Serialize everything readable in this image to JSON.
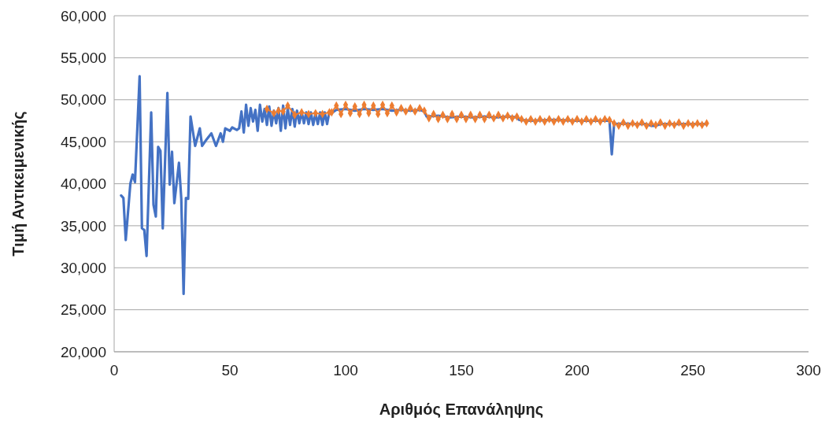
{
  "chart_data": {
    "type": "line",
    "xlabel": "Αριθμός Επανάληψης",
    "ylabel": "Τιμή Αντικειμενικής",
    "xlim": [
      0,
      300
    ],
    "xticks": [
      0,
      50,
      100,
      150,
      200,
      250,
      300
    ],
    "ylim": [
      20000,
      60000
    ],
    "yticks": [
      {
        "value": 20000,
        "label": "20,000"
      },
      {
        "value": 25000,
        "label": "25,000"
      },
      {
        "value": 30000,
        "label": "30,000"
      },
      {
        "value": 35000,
        "label": "35,000"
      },
      {
        "value": 40000,
        "label": "40,000"
      },
      {
        "value": 45000,
        "label": "45,000"
      },
      {
        "value": 50000,
        "label": "50,000"
      },
      {
        "value": 55000,
        "label": "55,000"
      },
      {
        "value": 60000,
        "label": "60,000"
      }
    ],
    "grid": "y",
    "series": [
      {
        "color": "#4472c4",
        "marker": "none",
        "x": [
          3,
          4,
          5,
          7,
          8,
          9,
          11,
          12,
          13,
          14,
          16,
          17,
          18,
          19,
          20,
          21,
          23,
          24,
          25,
          26,
          28,
          29,
          30,
          31,
          32,
          33,
          35,
          37,
          38,
          40,
          42,
          44,
          46,
          47,
          48,
          50,
          51,
          53,
          54,
          55,
          56,
          57,
          58,
          59,
          60,
          61,
          62,
          63,
          64,
          65,
          66,
          67,
          68,
          69,
          70,
          71,
          72,
          73,
          74,
          75,
          76,
          77,
          78,
          79,
          80,
          81,
          82,
          83,
          84,
          85,
          86,
          87,
          88,
          89,
          90,
          91,
          92,
          93,
          94,
          96,
          100,
          104,
          108,
          112,
          116,
          120,
          124,
          128,
          132,
          134,
          135,
          140,
          145,
          150,
          155,
          160,
          165,
          170,
          174,
          175,
          180,
          190,
          200,
          210,
          214,
          215,
          216,
          220,
          225,
          230,
          232,
          234,
          236,
          240,
          250,
          256
        ],
        "values": [
          38600,
          38300,
          33300,
          40000,
          41100,
          40200,
          52800,
          34700,
          34500,
          31400,
          48500,
          37500,
          36100,
          44400,
          43900,
          34700,
          50800,
          39900,
          43800,
          37700,
          42500,
          38200,
          26900,
          38300,
          38200,
          48000,
          44500,
          46600,
          44500,
          45300,
          46000,
          44500,
          46000,
          45000,
          46600,
          46300,
          46700,
          46400,
          46600,
          48600,
          46100,
          49400,
          46900,
          49000,
          47400,
          48800,
          46300,
          49400,
          47400,
          48900,
          47000,
          49200,
          46900,
          48700,
          47200,
          49000,
          46300,
          49300,
          46600,
          49000,
          47000,
          48900,
          46800,
          48700,
          47200,
          48600,
          47200,
          48500,
          47100,
          48500,
          47000,
          48400,
          47100,
          48500,
          47000,
          48500,
          47100,
          48600,
          48400,
          48800,
          48900,
          48700,
          48900,
          48800,
          48900,
          48700,
          48800,
          48700,
          48800,
          48600,
          48000,
          48100,
          47900,
          48000,
          47900,
          48000,
          47900,
          48000,
          47900,
          47600,
          47500,
          47600,
          47500,
          47500,
          47500,
          43500,
          47100,
          47150,
          47100,
          47100,
          46900,
          46900,
          47100,
          47100,
          47100,
          47100
        ]
      },
      {
        "color": "#ed7d31",
        "marker": "diamond",
        "x": [
          66,
          69,
          71,
          73,
          75,
          78,
          81,
          84,
          87,
          90,
          93,
          94,
          96,
          98,
          100,
          102,
          104,
          106,
          108,
          110,
          112,
          114,
          116,
          118,
          120,
          122,
          124,
          126,
          128,
          130,
          132,
          134,
          136,
          138,
          140,
          142,
          144,
          146,
          148,
          150,
          152,
          154,
          156,
          158,
          160,
          162,
          164,
          166,
          168,
          170,
          172,
          174,
          176,
          178,
          180,
          182,
          184,
          186,
          188,
          190,
          192,
          194,
          196,
          198,
          200,
          202,
          204,
          206,
          208,
          210,
          212,
          214,
          216,
          218,
          220,
          222,
          224,
          226,
          228,
          230,
          232,
          234,
          236,
          238,
          240,
          242,
          244,
          246,
          248,
          250,
          252,
          254,
          256
        ],
        "values": [
          48900,
          48400,
          48700,
          48600,
          49300,
          48200,
          48500,
          48300,
          48400,
          48300,
          48500,
          48500,
          49300,
          48300,
          49400,
          48400,
          49200,
          48300,
          49400,
          48400,
          49300,
          48300,
          49400,
          48400,
          49300,
          48500,
          49000,
          48600,
          49000,
          48600,
          49000,
          48700,
          47800,
          48300,
          47700,
          48200,
          47700,
          48300,
          47700,
          48200,
          47700,
          48200,
          47700,
          48200,
          47700,
          48200,
          47800,
          48200,
          47800,
          48100,
          47800,
          48000,
          47700,
          47400,
          47700,
          47400,
          47700,
          47400,
          47700,
          47400,
          47700,
          47400,
          47700,
          47400,
          47700,
          47400,
          47700,
          47400,
          47700,
          47400,
          47700,
          47600,
          47200,
          46900,
          47300,
          46900,
          47200,
          47000,
          47300,
          46900,
          47200,
          47000,
          47300,
          46900,
          47200,
          47000,
          47300,
          46900,
          47200,
          47000,
          47200,
          47000,
          47200
        ]
      }
    ]
  }
}
